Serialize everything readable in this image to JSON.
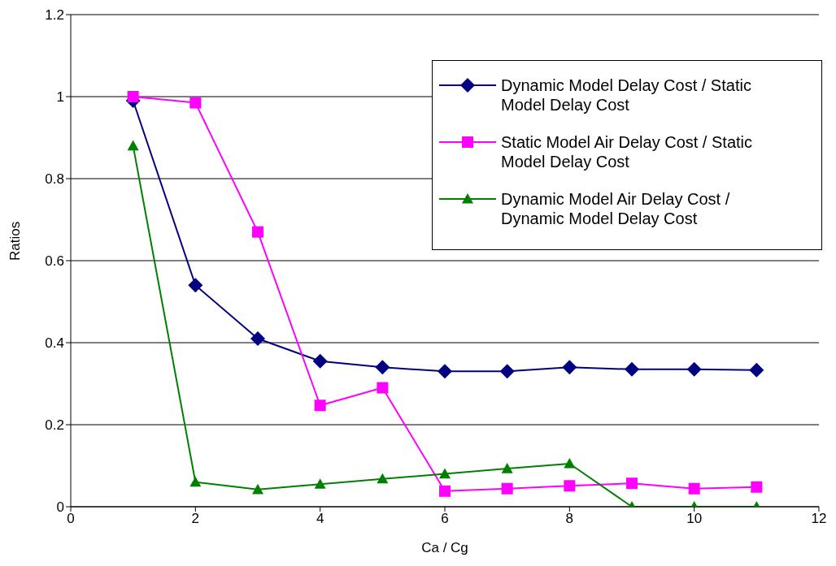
{
  "chart_data": {
    "type": "line",
    "xlabel": "Ca / Cg",
    "ylabel": "Ratios",
    "x": [
      1,
      2,
      3,
      4,
      5,
      6,
      7,
      8,
      9,
      10,
      11
    ],
    "xlim": [
      0,
      12
    ],
    "xticks": [
      0,
      2,
      4,
      6,
      8,
      10,
      12
    ],
    "ylim": [
      0,
      1.2
    ],
    "yticks": [
      0,
      0.2,
      0.4,
      0.6,
      0.8,
      1,
      1.2
    ],
    "grid": "y",
    "legend": "top right",
    "line_style": "solid",
    "series": [
      {
        "name": "Dynamic Model Delay Cost / Static Model Delay Cost",
        "color": "#000080",
        "marker": "diamond",
        "values": [
          0.99,
          0.54,
          0.41,
          0.355,
          0.34,
          0.33,
          0.33,
          0.34,
          0.335,
          0.335,
          0.333
        ]
      },
      {
        "name": "Static Model Air Delay Cost / Static Model Delay Cost",
        "color": "#ff00ff",
        "marker": "square",
        "values": [
          1,
          0.985,
          0.67,
          0.247,
          0.29,
          0.038,
          0.044,
          0.051,
          0.057,
          0.044,
          0.048
        ]
      },
      {
        "name": "Dynamic Model Air Delay Cost / Dynamic Model Delay Cost",
        "color": "#008000",
        "marker": "triangle",
        "values": [
          0.88,
          0.06,
          0.042,
          0.055,
          0.068,
          0.08,
          0.093,
          0.105,
          0,
          0,
          0
        ]
      }
    ]
  }
}
